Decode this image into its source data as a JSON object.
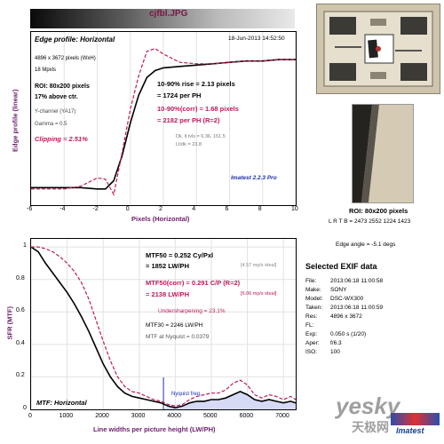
{
  "file_title": "cjfbl.JPG",
  "edge": {
    "title": "Edge profile: Horizontal",
    "timestamp": "18-Jun-2013 14:52:50",
    "dims": "4896 x 3672 pixels (WxH)",
    "mpxls": "18 Mpxls",
    "roi": "ROI: 80x200 pixels",
    "above_ctr": "17% above ctr.",
    "channel": "Y-channel  (YA17)",
    "gamma": "Gamma = 0.5",
    "clipping": "Clipping =  2.51%",
    "rise1": "10-90% rise = 2.13 pixels",
    "rise2": "= 1724 per PH",
    "corr1": "10-90%(corr) = 1.68 pixels",
    "corr2": "= 2182 per PH  (R=2)",
    "dk": "Dk, lt lvls = 6.36, 151.5",
    "ltdk": "Lt/dk = 23.8",
    "version": "Imatest 2.2.3 Pro",
    "ylabel": "Edge profile (linear)",
    "xlabel": "Pixels (Horizontal)",
    "xticks": [
      "-6",
      "-4",
      "-2",
      "0",
      "2",
      "4",
      "6",
      "8",
      "10"
    ]
  },
  "mtf": {
    "mtf50_1": "MTF50 = 0.252 Cy/Pxl",
    "mtf50_2": "= 1852 LW/PH",
    "ideal1": "[4.57 mp/s ideal]",
    "corr_1": "MTF50(corr) = 0.291 C/P  (R=2)",
    "corr_2": "= 2138 LW/PH",
    "ideal2": "[6.06 mp/s ideal]",
    "under": "Undersharpening = 23.1%",
    "mtf30": "MTF30 = 2246 LW/PH",
    "nyq": "MTF at Nyquist = 0.0379",
    "nyq_label": "Nyquist freq.",
    "chart_label": "MTF: Horizontal",
    "ylabel": "SFR (MTF)",
    "xlabel": "Line widths per picture height (LW/PH)",
    "xticks": [
      "0",
      "1000",
      "2000",
      "3000",
      "4000",
      "5000",
      "6000",
      "7000"
    ],
    "yticks": [
      "1",
      "0.8",
      "0.6",
      "0.4",
      "0.2",
      "0"
    ]
  },
  "side": {
    "roi": "ROI: 80x200 pixels",
    "lrtb": "L R T B = 2473 2552 1224 1423",
    "edge_angle": "Edge angle = -5.1 degs",
    "exif_title": "Selected EXIF data",
    "exif": [
      [
        "File:",
        "2013:06:18 11:00:58"
      ],
      [
        "Make:",
        "SONY"
      ],
      [
        "Model:",
        "DSC-WX300"
      ],
      [
        "Taken:",
        "2013:06:18 11:00:59"
      ],
      [
        "Res:",
        "4896 x 3672"
      ],
      [
        "FL:",
        ""
      ],
      [
        "Exp:",
        "0.050 s  (1/20)"
      ],
      [
        "Aper:",
        "f/6.3"
      ],
      [
        "ISO:",
        "100"
      ]
    ],
    "logo": "Imatest",
    "watermark": "yesky",
    "watermark_cn": "天极网"
  },
  "chart_data": [
    {
      "type": "line",
      "title": "Edge profile: Horizontal",
      "xlabel": "Pixels (Horizontal)",
      "ylabel": "Edge profile (linear)",
      "xlim": [
        -6,
        10
      ],
      "series": [
        {
          "color": "#000000",
          "x": [
            -6,
            -5,
            -4,
            -3,
            -2,
            -1.5,
            -1,
            -0.5,
            0,
            0.5,
            1,
            1.5,
            2,
            3,
            4,
            5,
            6,
            7,
            8,
            9,
            10
          ],
          "y": [
            0.05,
            0.05,
            0.05,
            0.05,
            0.04,
            0.04,
            0.1,
            0.28,
            0.52,
            0.72,
            0.85,
            0.9,
            0.92,
            0.93,
            0.94,
            0.95,
            0.96,
            0.97,
            0.97,
            0.98,
            0.98
          ]
        },
        {
          "color": "#c0185a",
          "x": [
            -6,
            -5,
            -4,
            -3,
            -2,
            -1.5,
            -1,
            -0.5,
            0,
            0.5,
            1,
            1.5,
            2,
            3,
            4,
            5,
            6,
            7,
            8,
            9,
            10
          ],
          "y": [
            0.04,
            0.04,
            0.04,
            0.06,
            0.12,
            0.11,
            0.0,
            0.3,
            0.62,
            0.86,
            1.04,
            1.06,
            1.02,
            0.96,
            0.95,
            0.95,
            0.96,
            0.97,
            0.97,
            0.98,
            0.98
          ]
        }
      ]
    },
    {
      "type": "line",
      "title": "MTF: Horizontal",
      "xlabel": "Line widths per picture height (LW/PH)",
      "ylabel": "SFR (MTF)",
      "xlim": [
        0,
        7340
      ],
      "ylim": [
        0,
        1.05
      ],
      "series": [
        {
          "color": "#000000",
          "x": [
            0,
            200,
            400,
            600,
            800,
            1000,
            1200,
            1400,
            1600,
            1800,
            2000,
            2200,
            2400,
            2600,
            2800,
            3000,
            3200,
            3400,
            3600,
            3800,
            4000,
            4200,
            4400,
            4600,
            4800,
            5000,
            5200,
            5400,
            5600,
            5800,
            6000,
            6200,
            6400,
            6600,
            6800,
            7000,
            7200,
            7340
          ],
          "y": [
            1,
            0.97,
            0.9,
            0.84,
            0.78,
            0.72,
            0.65,
            0.57,
            0.48,
            0.38,
            0.28,
            0.2,
            0.14,
            0.1,
            0.08,
            0.07,
            0.06,
            0.05,
            0.04,
            0.02,
            0.01,
            0.02,
            0.04,
            0.05,
            0.05,
            0.06,
            0.06,
            0.07,
            0.09,
            0.11,
            0.09,
            0.06,
            0.05,
            0.06,
            0.05,
            0.04,
            0.05,
            0.04
          ]
        },
        {
          "color": "#c0185a",
          "x": [
            0,
            200,
            400,
            600,
            800,
            1000,
            1200,
            1400,
            1600,
            1800,
            2000,
            2200,
            2400,
            2600,
            2800,
            3000,
            3200,
            3400,
            3600,
            3800,
            4000,
            4200,
            4400,
            4600,
            4800,
            5000,
            5200,
            5400,
            5600,
            5800,
            6000,
            6200,
            6400,
            6600,
            6800,
            7000,
            7200,
            7340
          ],
          "y": [
            1,
            1.0,
            0.99,
            0.97,
            0.94,
            0.9,
            0.85,
            0.78,
            0.68,
            0.55,
            0.42,
            0.3,
            0.2,
            0.14,
            0.11,
            0.1,
            0.08,
            0.06,
            0.05,
            0.03,
            0.02,
            0.03,
            0.06,
            0.08,
            0.09,
            0.1,
            0.1,
            0.12,
            0.16,
            0.18,
            0.15,
            0.09,
            0.07,
            0.09,
            0.08,
            0.06,
            0.08,
            0.06
          ]
        }
      ]
    }
  ]
}
